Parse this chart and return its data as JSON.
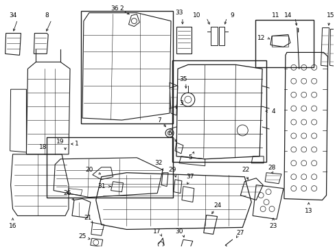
{
  "bg_color": "#ffffff",
  "figsize": [
    4.89,
    3.6
  ],
  "dpi": 100,
  "line_color": "#1a1a1a",
  "text_color": "#000000",
  "font_size": 6.5
}
